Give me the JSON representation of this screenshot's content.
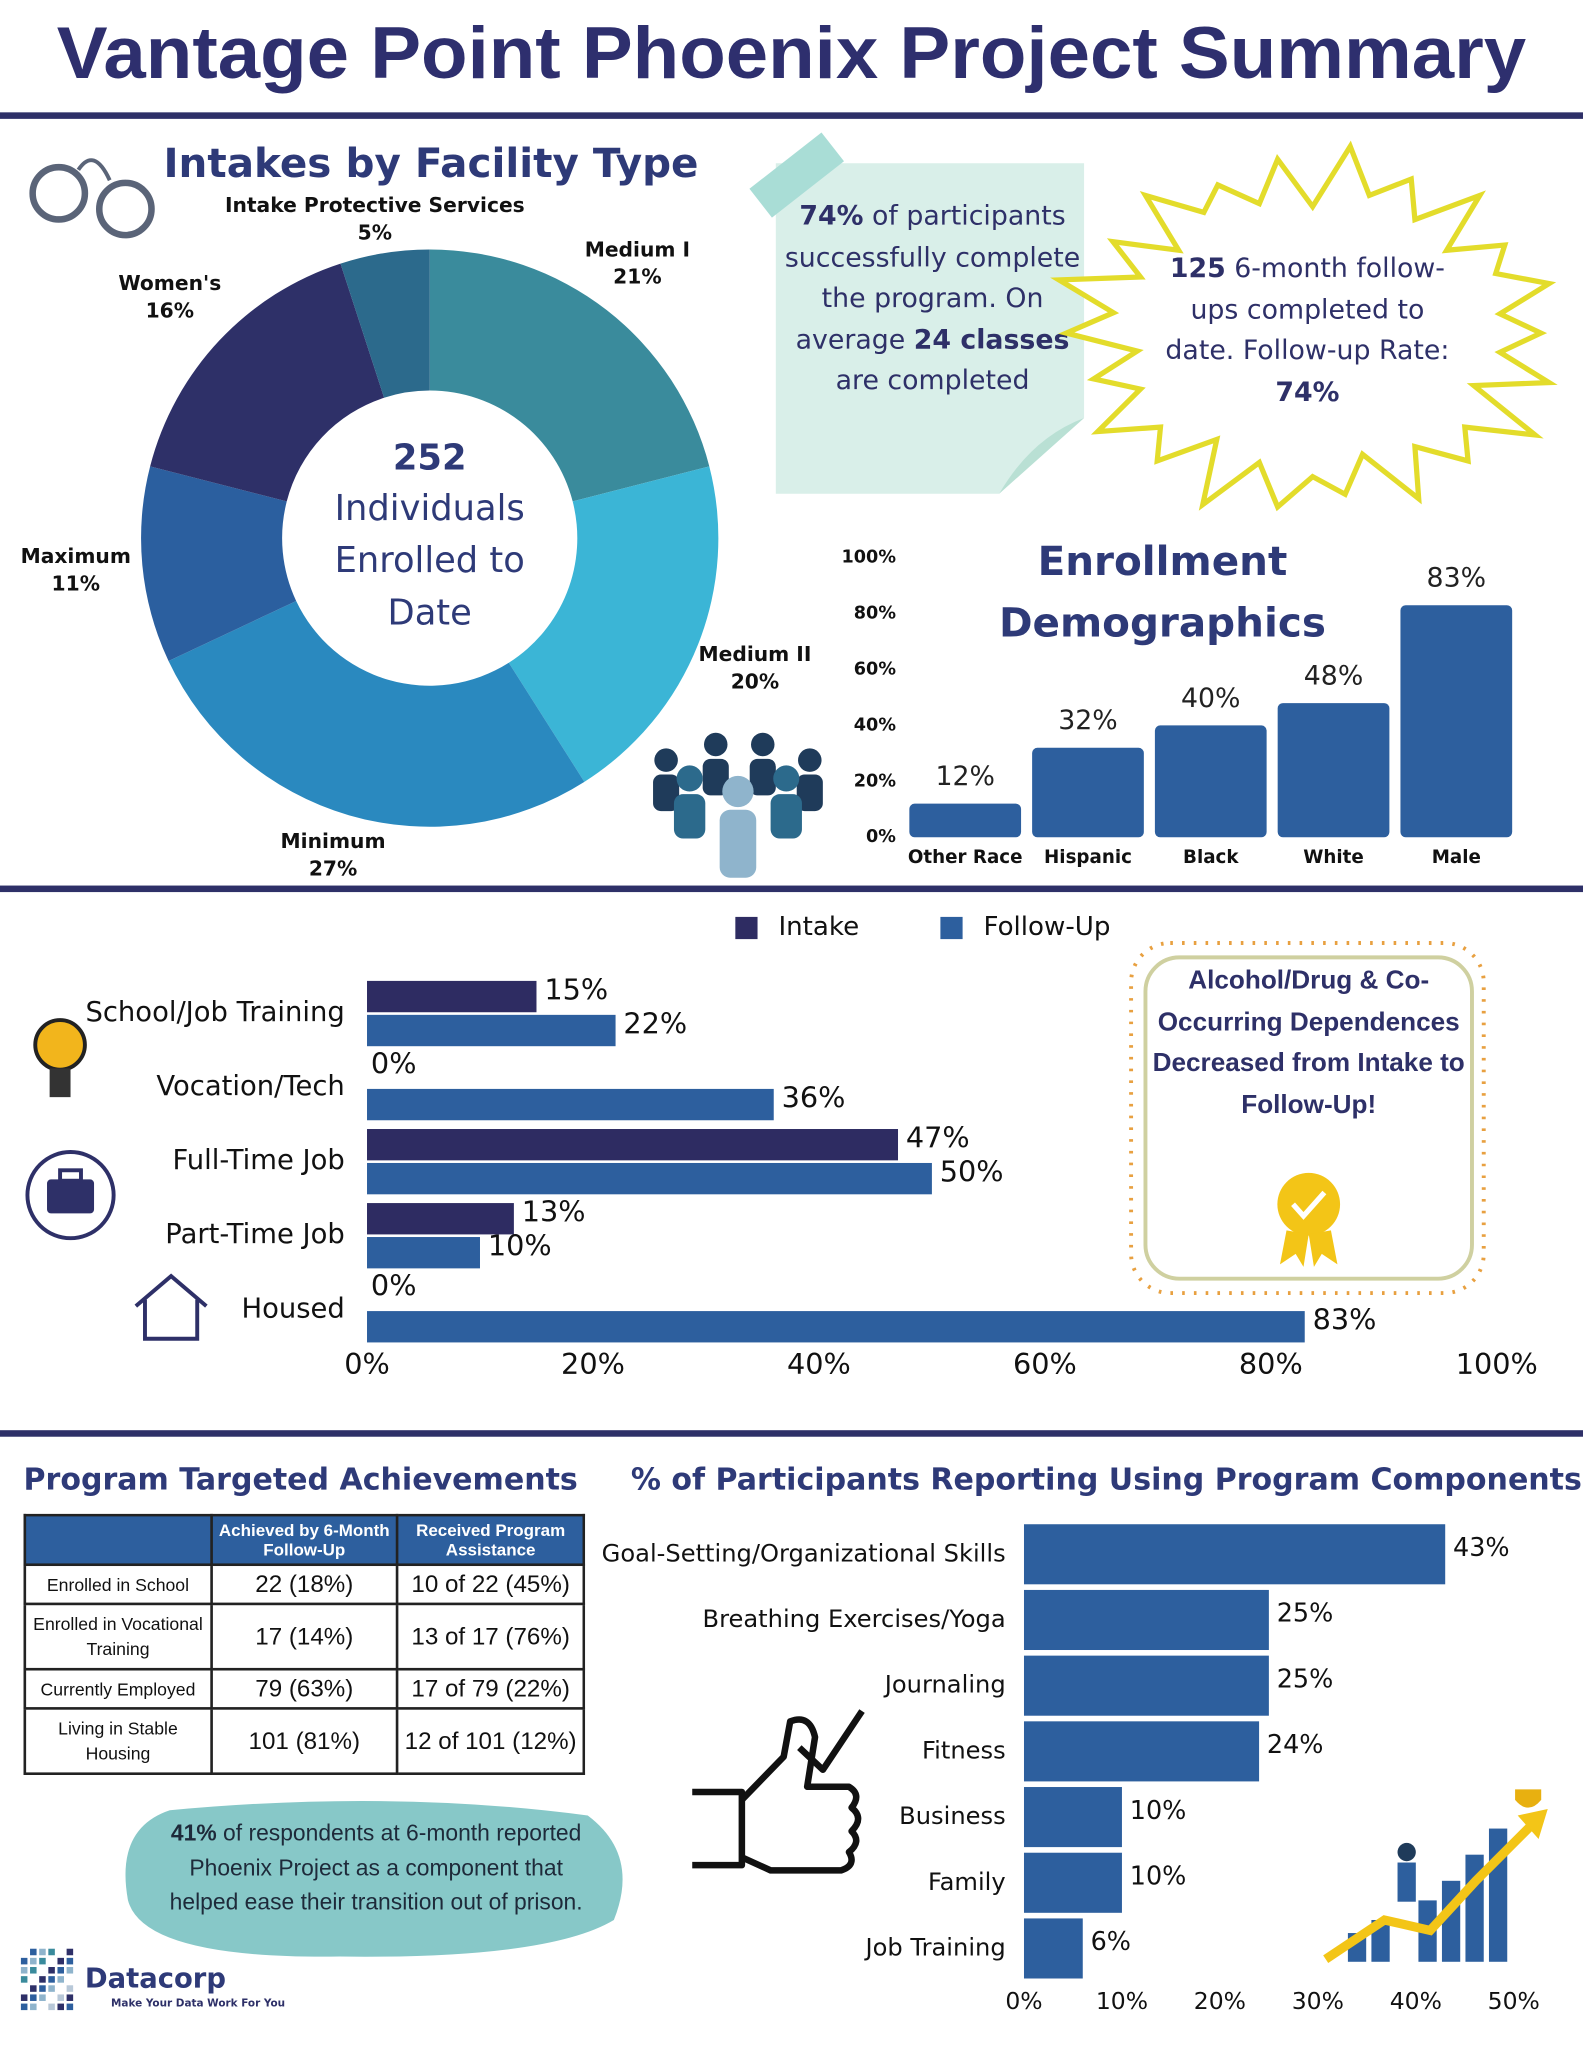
{
  "title": "Vantage Point Phoenix Project Summary",
  "chart_data": [
    {
      "type": "donut",
      "title": "Intakes by Facility Type",
      "categories": [
        "Medium I",
        "Medium II",
        "Minimum",
        "Maximum",
        "Women's",
        "Intake Protective Services"
      ],
      "values": [
        21,
        20,
        27,
        11,
        16,
        5
      ],
      "value_labels": [
        "21%",
        "20%",
        "27%",
        "11%",
        "16%",
        "5%"
      ],
      "colors": [
        "#3a8b9c",
        "#3bb5d6",
        "#2a89bf",
        "#2b5f9f",
        "#2e3068",
        "#2c6a8c"
      ],
      "center_value": 252,
      "center_label": "Individuals Enrolled to Date"
    },
    {
      "type": "bar",
      "title": "Enrollment Demographics",
      "categories": [
        "Other Race",
        "Hispanic",
        "Black",
        "White",
        "Male"
      ],
      "values": [
        12,
        32,
        40,
        48,
        83
      ],
      "value_labels": [
        "12%",
        "32%",
        "40%",
        "48%",
        "83%"
      ],
      "color": "#2d5f9e",
      "ylim": [
        0,
        100
      ],
      "yticks": [
        {
          "value": 0,
          "label": "0%"
        },
        {
          "value": 20,
          "label": "20%"
        },
        {
          "value": 40,
          "label": "40%"
        },
        {
          "value": 60,
          "label": "60%"
        },
        {
          "value": 80,
          "label": "80%"
        },
        {
          "value": 100,
          "label": "100%"
        }
      ]
    },
    {
      "type": "hbar",
      "legend": "top",
      "categories": [
        "School/Job Training",
        "Vocation/Tech",
        "Full-Time Job",
        "Part-Time Job",
        "Housed"
      ],
      "series": [
        {
          "name": "Intake",
          "color": "#2e2c62",
          "values": [
            15,
            0,
            47,
            13,
            0
          ],
          "value_labels": [
            "15%",
            "0%",
            "47%",
            "13%",
            "0%"
          ]
        },
        {
          "name": "Follow-Up",
          "color": "#2d5f9e",
          "values": [
            22,
            36,
            50,
            10,
            83
          ],
          "value_labels": [
            "22%",
            "36%",
            "50%",
            "10%",
            "83%"
          ]
        }
      ],
      "xlim": [
        0,
        100
      ],
      "xticks": [
        {
          "value": 0,
          "label": "0%"
        },
        {
          "value": 20,
          "label": "20%"
        },
        {
          "value": 40,
          "label": "40%"
        },
        {
          "value": 60,
          "label": "60%"
        },
        {
          "value": 80,
          "label": "80%"
        },
        {
          "value": 100,
          "label": "100%"
        }
      ]
    },
    {
      "type": "hbar",
      "title": "% of Participants Reporting Using Program Components",
      "categories": [
        "Goal-Setting/Organizational Skills",
        "Breathing Exercises/Yoga",
        "Journaling",
        "Fitness",
        "Business",
        "Family",
        "Job Training"
      ],
      "values": [
        43,
        25,
        25,
        24,
        10,
        10,
        6
      ],
      "value_labels": [
        "43%",
        "25%",
        "25%",
        "24%",
        "10%",
        "10%",
        "6%"
      ],
      "color": "#2d5f9e",
      "xlim": [
        0,
        50
      ],
      "xticks": [
        {
          "value": 0,
          "label": "0%"
        },
        {
          "value": 10,
          "label": "10%"
        },
        {
          "value": 20,
          "label": "20%"
        },
        {
          "value": 30,
          "label": "30%"
        },
        {
          "value": 40,
          "label": "40%"
        },
        {
          "value": 50,
          "label": "50%"
        }
      ]
    }
  ],
  "completion_note": [
    "74%",
    " of participants successfully complete the program. On average ",
    "24 classes",
    " are completed"
  ],
  "followup_note": [
    "125",
    " 6-month follow-ups completed to date. Follow-up Rate: ",
    "74%"
  ],
  "award_note": "Alcohol/Drug & Co-Occurring Dependences Decreased from Intake to Follow-Up!",
  "table": {
    "title": "Program Targeted Achievements",
    "columns": [
      "Achieved by 6-Month Follow-Up",
      "Received Program Assistance"
    ],
    "rows": [
      [
        "Enrolled in School",
        "22 (18%)",
        "10 of 22 (45%)"
      ],
      [
        "Enrolled in Vocational Training",
        "17 (14%)",
        "13 of 17 (76%)"
      ],
      [
        "Currently Employed",
        "79 (63%)",
        "17 of 79 (22%)"
      ],
      [
        "Living in Stable Housing",
        "101 (81%)",
        "12 of 101 (12%)"
      ]
    ]
  },
  "transition_note": [
    "41%",
    " of respondents at 6-month reported Phoenix Project as a component that helped ease their transition out of prison."
  ],
  "logo": {
    "name": "Datacorp",
    "tagline": "Make Your Data Work For You"
  }
}
